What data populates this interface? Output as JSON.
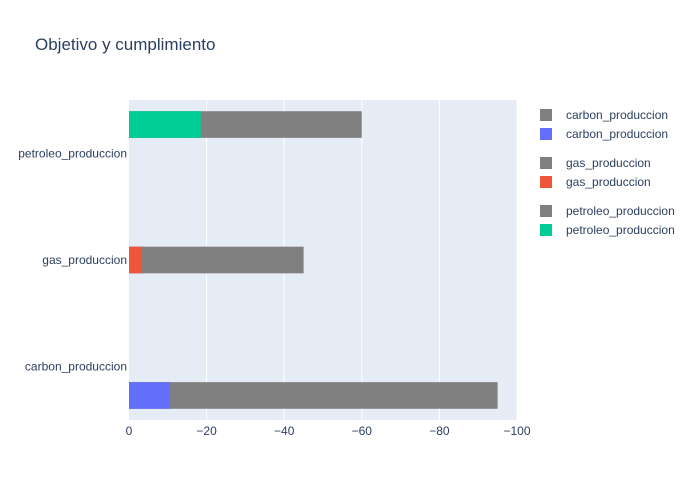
{
  "chart_data": {
    "type": "bar",
    "orientation": "horizontal",
    "barmode": "overlay",
    "title": "Objetivo y cumplimiento",
    "xlabel": "",
    "ylabel": "",
    "xlim": [
      0,
      -100
    ],
    "x_ticks": [
      0,
      -20,
      -40,
      -60,
      -80,
      -100
    ],
    "x_tick_labels": [
      "0",
      "−20",
      "−40",
      "−60",
      "−80",
      "−100"
    ],
    "categories": [
      "carbon_produccion",
      "gas_produccion",
      "petroleo_produccion"
    ],
    "grid": true,
    "legend_position": "right",
    "series": [
      {
        "name": "carbon_produccion",
        "role": "objetivo",
        "category": "carbon_produccion",
        "value": -95,
        "color": "#808080",
        "slot": "lower"
      },
      {
        "name": "carbon_produccion",
        "role": "cumplimiento",
        "category": "carbon_produccion",
        "value": -10.5,
        "color": "#636efa",
        "slot": "lower"
      },
      {
        "name": "gas_produccion",
        "role": "objetivo",
        "category": "gas_produccion",
        "value": -45,
        "color": "#808080",
        "slot": "center"
      },
      {
        "name": "gas_produccion",
        "role": "cumplimiento",
        "category": "gas_produccion",
        "value": -3.3,
        "color": "#ef553b",
        "slot": "center"
      },
      {
        "name": "petroleo_produccion",
        "role": "objetivo",
        "category": "petroleo_produccion",
        "value": -60,
        "color": "#808080",
        "slot": "upper"
      },
      {
        "name": "petroleo_produccion",
        "role": "cumplimiento",
        "category": "petroleo_produccion",
        "value": -18.5,
        "color": "#00cc96",
        "slot": "upper"
      }
    ],
    "legend": [
      {
        "label": "carbon_produccion",
        "color": "#808080"
      },
      {
        "label": "carbon_produccion",
        "color": "#636efa"
      },
      {
        "label": "gas_produccion",
        "color": "#808080"
      },
      {
        "label": "gas_produccion",
        "color": "#ef553b"
      },
      {
        "label": "petroleo_produccion",
        "color": "#808080"
      },
      {
        "label": "petroleo_produccion",
        "color": "#00cc96"
      }
    ]
  }
}
